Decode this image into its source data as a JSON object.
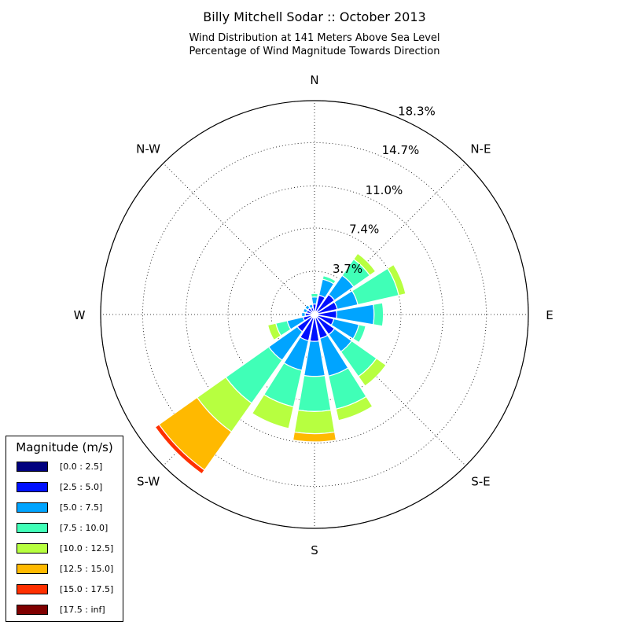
{
  "chart_data": {
    "type": "windrose",
    "title": "Billy Mitchell Sodar :: October 2013",
    "subtitle_line1": "Wind Distribution at 141 Meters Above Sea Level",
    "subtitle_line2": "Percentage of Wind Magnitude Towards Direction",
    "direction_labels": [
      "N",
      "N-E",
      "E",
      "S-E",
      "S",
      "S-W",
      "W",
      "N-W"
    ],
    "radial_tick_labels": [
      "3.7%",
      "7.4%",
      "11.0%",
      "14.7%",
      "18.3%"
    ],
    "radial_ticks": [
      3.7,
      7.4,
      11.0,
      14.7,
      18.3
    ],
    "rmax": 18.3,
    "legend_title": "Magnitude (m/s)",
    "bins": [
      "[0.0 : 2.5]",
      "[2.5 : 5.0]",
      "[5.0 : 7.5]",
      "[7.5 : 10.0]",
      "[10.0 : 12.5]",
      "[12.5 : 15.0]",
      "[15.0 : 17.5]",
      "[17.5 : inf]"
    ],
    "colors": [
      "#00007f",
      "#0010ff",
      "#00a4ff",
      "#40ffb7",
      "#b7ff40",
      "#ffb900",
      "#ff3000",
      "#7f0000"
    ],
    "sector_width_deg": 19.5,
    "sectors": [
      {
        "direction_deg": 0,
        "values": [
          0.2,
          0.7,
          0.6,
          0.3,
          0,
          0,
          0,
          0
        ]
      },
      {
        "direction_deg": 22.5,
        "values": [
          0.3,
          1.4,
          1.4,
          0.3,
          0,
          0,
          0,
          0
        ]
      },
      {
        "direction_deg": 45,
        "values": [
          0.3,
          1.8,
          2.0,
          1.7,
          0.6,
          0,
          0,
          0
        ]
      },
      {
        "direction_deg": 67.5,
        "values": [
          0.3,
          1.7,
          1.8,
          3.6,
          0.6,
          0,
          0,
          0
        ]
      },
      {
        "direction_deg": 90,
        "values": [
          0.3,
          1.6,
          3.2,
          0.8,
          0,
          0,
          0,
          0
        ]
      },
      {
        "direction_deg": 112.5,
        "values": [
          0.3,
          1.4,
          2.2,
          0.6,
          0,
          0,
          0,
          0
        ]
      },
      {
        "direction_deg": 135,
        "values": [
          0.3,
          1.8,
          1.8,
          2.6,
          1.0,
          0,
          0,
          0
        ]
      },
      {
        "direction_deg": 157.5,
        "values": [
          0.3,
          1.8,
          3.3,
          2.9,
          1.0,
          0,
          0,
          0
        ]
      },
      {
        "direction_deg": 180,
        "values": [
          0.3,
          2.0,
          3.0,
          3.0,
          1.9,
          0.7,
          0,
          0
        ]
      },
      {
        "direction_deg": 202.5,
        "values": [
          0.3,
          2.0,
          2.6,
          3.2,
          1.9,
          0,
          0,
          0
        ]
      },
      {
        "direction_deg": 225,
        "values": [
          0.3,
          1.5,
          3.0,
          4.5,
          3.0,
          4.0,
          0.4,
          0
        ]
      },
      {
        "direction_deg": 247.5,
        "values": [
          0.3,
          0.7,
          1.4,
          1.0,
          0.7,
          0,
          0,
          0
        ]
      },
      {
        "direction_deg": 270,
        "values": [
          0.3,
          0.5,
          0.3,
          0,
          0,
          0,
          0,
          0
        ]
      },
      {
        "direction_deg": 292.5,
        "values": [
          0.2,
          0.5,
          0.3,
          0,
          0,
          0,
          0,
          0
        ]
      },
      {
        "direction_deg": 315,
        "values": [
          0.2,
          0.5,
          0.3,
          0,
          0,
          0,
          0,
          0
        ]
      },
      {
        "direction_deg": 337.5,
        "values": [
          0.2,
          0.4,
          0.3,
          0,
          0,
          0,
          0,
          0
        ]
      }
    ]
  }
}
